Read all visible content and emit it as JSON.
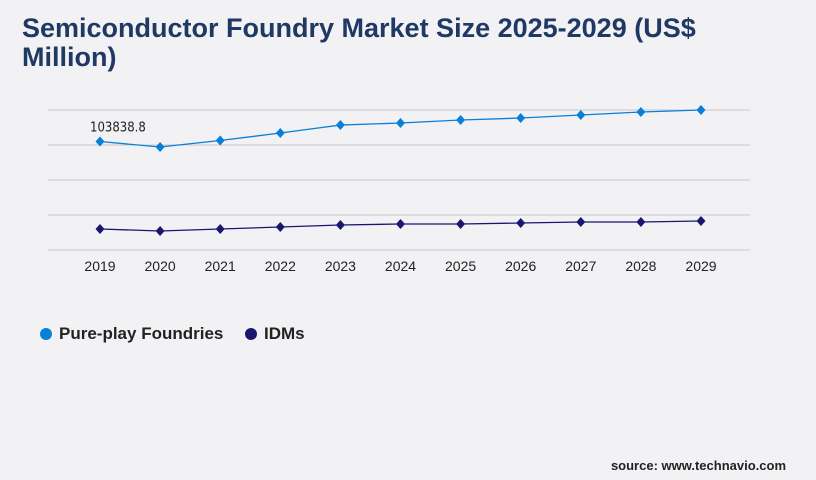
{
  "chart_data": {
    "type": "line",
    "title": "Semiconductor Foundry Market Size 2025-2029 (US$ Million)",
    "x": [
      "2019",
      "2020",
      "2021",
      "2022",
      "2023",
      "2024",
      "2025",
      "2026",
      "2027",
      "2028",
      "2029"
    ],
    "series": [
      {
        "name": "Pure-play Foundries",
        "color": "#0a7fd6",
        "values": [
          103838.8,
          98570,
          104790,
          111970,
          119600,
          121540,
          124410,
          126320,
          129200,
          132070,
          133980
        ]
      },
      {
        "name": "IDMs",
        "color": "#1a1670",
        "values": [
          20100,
          18180,
          20100,
          22010,
          23930,
          24880,
          24880,
          25840,
          26800,
          26800,
          27750
        ]
      }
    ],
    "data_labels": [
      {
        "series": 0,
        "index": 0,
        "text": "103838.8"
      }
    ],
    "ylim": [
      0,
      134000
    ],
    "grid": true,
    "legend": "bottom-left"
  },
  "source": "source: www.technavio.com"
}
